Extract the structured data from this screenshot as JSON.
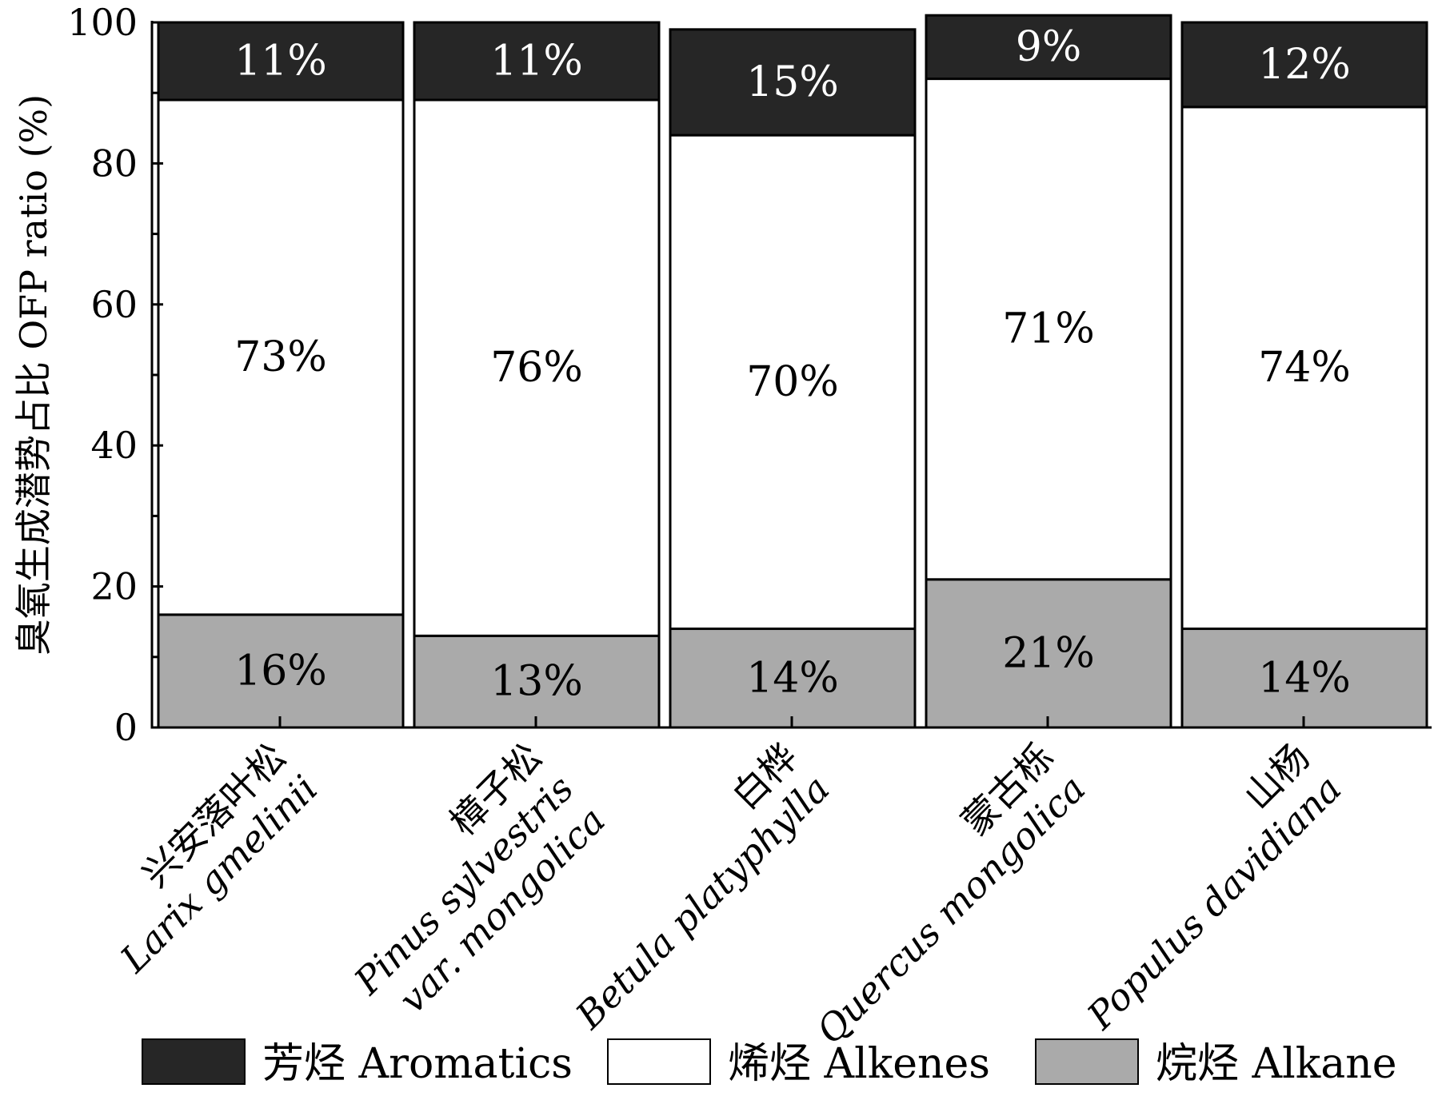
{
  "chart_data": {
    "type": "bar",
    "stacked": true,
    "ylabel": "臭氧生成潜势占比 OFP ratio (%)",
    "ylim": [
      0,
      100
    ],
    "yticks": [
      "0",
      "20",
      "40",
      "60",
      "80",
      "100"
    ],
    "categories": [
      {
        "cn": "兴安落叶松",
        "latin": [
          "Larix gmelinii"
        ]
      },
      {
        "cn": "樟子松",
        "latin": [
          "Pinus sylvestris",
          "var. mongolica"
        ]
      },
      {
        "cn": "白桦",
        "latin": [
          "Betula platyphylla"
        ]
      },
      {
        "cn": "蒙古栎",
        "latin": [
          "Quercus mongolica"
        ]
      },
      {
        "cn": "山杨",
        "latin": [
          "Populus davidiana"
        ]
      }
    ],
    "series": [
      {
        "name": "烷烃 Alkane",
        "color": "#aaaaaa",
        "values": [
          16,
          13,
          14,
          21,
          14
        ],
        "labels": [
          "16%",
          "13%",
          "14%",
          "21%",
          "14%"
        ]
      },
      {
        "name": "烯烃 Alkenes",
        "color": "#ffffff",
        "values": [
          73,
          76,
          70,
          71,
          74
        ],
        "labels": [
          "73%",
          "76%",
          "70%",
          "71%",
          "74%"
        ]
      },
      {
        "name": "芳烃 Aromatics",
        "color": "#262626",
        "values": [
          11,
          11,
          15,
          9,
          12
        ],
        "labels": [
          "11%",
          "11%",
          "15%",
          "9%",
          "12%"
        ]
      }
    ],
    "legend": [
      {
        "name": "芳烃 Aromatics",
        "color": "#262626"
      },
      {
        "name": "烯烃 Alkenes",
        "color": "#ffffff"
      },
      {
        "name": "烷烃 Alkane",
        "color": "#aaaaaa"
      }
    ],
    "legend_position": "bottom"
  }
}
